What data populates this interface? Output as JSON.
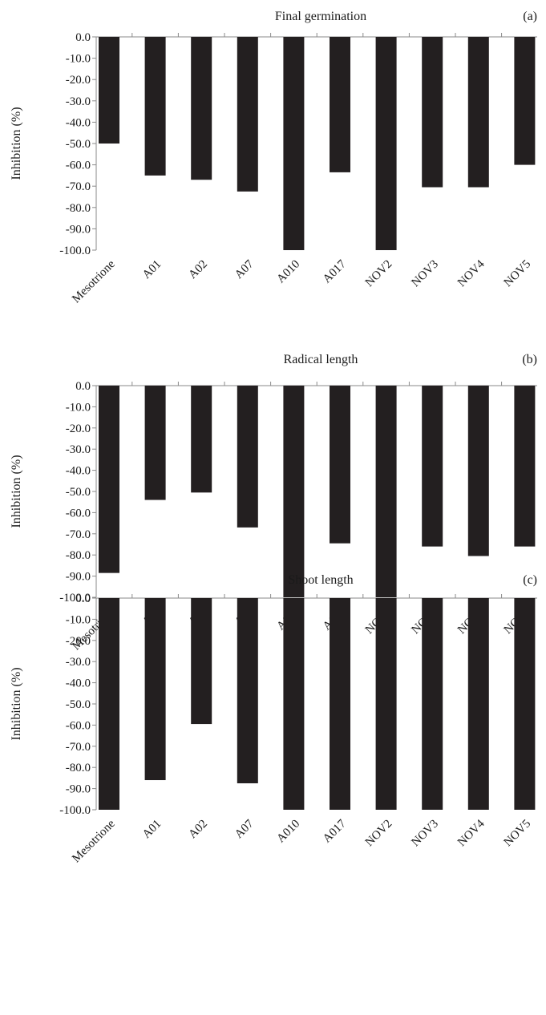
{
  "chart_data": [
    {
      "type": "bar",
      "title": "Final germination",
      "panel": "(a)",
      "ylabel": "Inhibition (%)",
      "xlabel": "",
      "ylim": [
        -100,
        0
      ],
      "yticks": [
        "0.0",
        "-10.0",
        "-20.0",
        "-30.0",
        "-40.0",
        "-50.0",
        "-60.0",
        "-70.0",
        "-80.0",
        "-90.0",
        "-100.0"
      ],
      "categories": [
        "Mesotrione",
        "A01",
        "A02",
        "A07",
        "A010",
        "A017",
        "NOV2",
        "NOV3",
        "NOV4",
        "NOV5"
      ],
      "values": [
        -50.0,
        -65.0,
        -67.0,
        -72.5,
        -100.0,
        -63.5,
        -100.0,
        -70.5,
        -70.5,
        -60.0
      ],
      "bar_color": "#231f20",
      "grid": false,
      "legend": "none"
    },
    {
      "type": "bar",
      "title": "Radical length",
      "panel": "(b)",
      "ylabel": "Inhibition (%)",
      "xlabel": "",
      "ylim": [
        -100,
        0
      ],
      "yticks": [
        "0.0",
        "-10.0",
        "-20.0",
        "-30.0",
        "-40.0",
        "-50.0",
        "-60.0",
        "-70.0",
        "-80.0",
        "-90.0",
        "-100.0"
      ],
      "categories": [
        "Mesotrione",
        "A01",
        "A02",
        "A07",
        "A010",
        "A017",
        "NOV2",
        "NOV3",
        "NOV4",
        "NOV5"
      ],
      "values": [
        -88.5,
        -54.0,
        -50.5,
        -67.0,
        -100.0,
        -74.5,
        -100.0,
        -76.0,
        -80.5,
        -76.0
      ],
      "bar_color": "#231f20",
      "grid": false,
      "legend": "none"
    },
    {
      "type": "bar",
      "title": "Shoot length",
      "panel": "(c)",
      "ylabel": "Inhibition (%)",
      "xlabel": "",
      "ylim": [
        -100,
        0
      ],
      "yticks": [
        "0.0",
        "-10.0",
        "-20.0",
        "-30.0",
        "-40.0",
        "-50.0",
        "-60.0",
        "-70.0",
        "-80.0",
        "-90.0",
        "-100.0"
      ],
      "categories": [
        "Mesotrione",
        "A01",
        "A02",
        "A07",
        "A010",
        "A017",
        "NOV2",
        "NOV3",
        "NOV4",
        "NOV5"
      ],
      "values": [
        -100.0,
        -86.0,
        -59.5,
        -87.5,
        -100.0,
        -100.0,
        -100.0,
        -100.0,
        -100.0,
        -100.0
      ],
      "bar_color": "#231f20",
      "grid": false,
      "legend": "none"
    }
  ]
}
